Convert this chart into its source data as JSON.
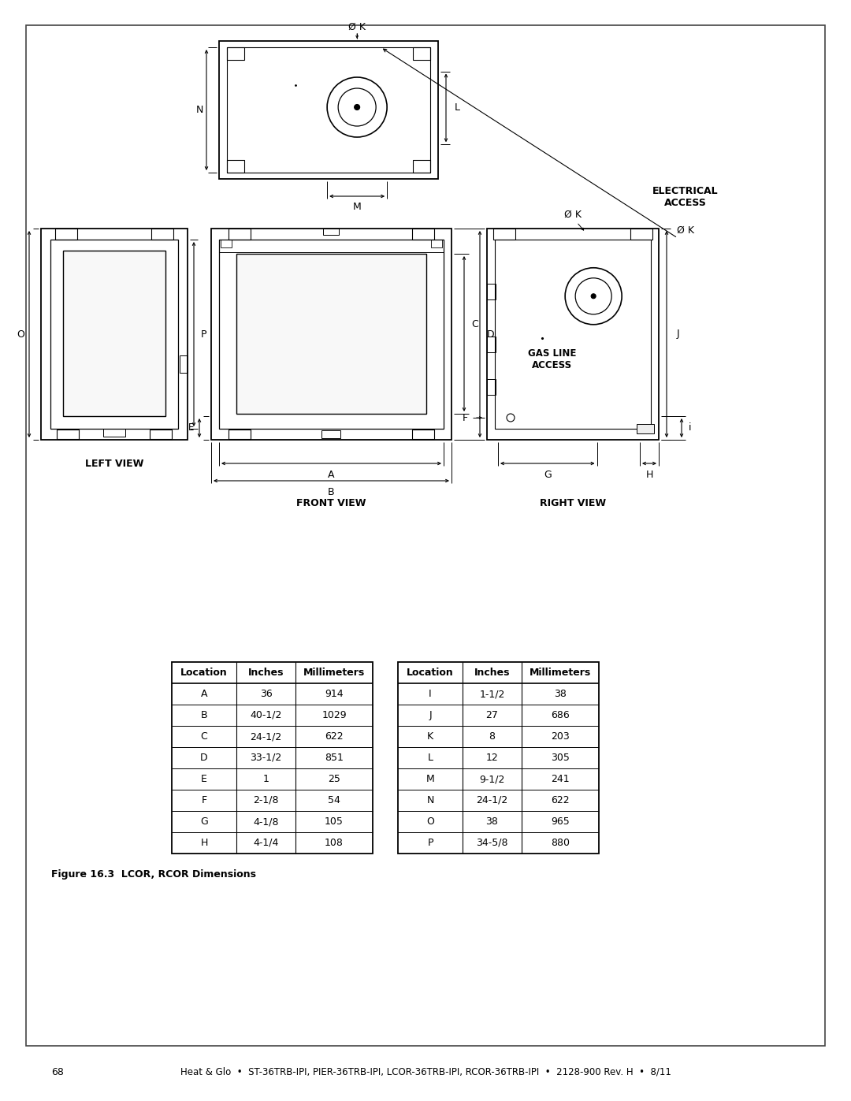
{
  "page_bg": "#ffffff",
  "line_color": "#000000",
  "text_color": "#000000",
  "table1": {
    "headers": [
      "Location",
      "Inches",
      "Millimeters"
    ],
    "rows": [
      [
        "A",
        "36",
        "914"
      ],
      [
        "B",
        "40-1/2",
        "1029"
      ],
      [
        "C",
        "24-1/2",
        "622"
      ],
      [
        "D",
        "33-1/2",
        "851"
      ],
      [
        "E",
        "1",
        "25"
      ],
      [
        "F",
        "2-1/8",
        "54"
      ],
      [
        "G",
        "4-1/8",
        "105"
      ],
      [
        "H",
        "4-1/4",
        "108"
      ]
    ]
  },
  "table2": {
    "headers": [
      "Location",
      "Inches",
      "Millimeters"
    ],
    "rows": [
      [
        "I",
        "1-1/2",
        "38"
      ],
      [
        "J",
        "27",
        "686"
      ],
      [
        "K",
        "8",
        "203"
      ],
      [
        "L",
        "12",
        "305"
      ],
      [
        "M",
        "9-1/2",
        "241"
      ],
      [
        "N",
        "24-1/2",
        "622"
      ],
      [
        "O",
        "38",
        "965"
      ],
      [
        "P",
        "34-5/8",
        "880"
      ]
    ]
  },
  "footer_text": "68",
  "footer_center": "Heat & Glo  •  ST-36TRB-IPI, PIER-36TRB-IPI, LCOR-36TRB-IPI, RCOR-36TRB-IPI  •  2128-900 Rev. H  •  8/11",
  "figure_caption": "Figure 16.3  LCOR, RCOR Dimensions",
  "left_view_label": "LEFT VIEW",
  "front_view_label": "FRONT VIEW",
  "right_view_label": "RIGHT VIEW",
  "electrical_access": "ELECTRICAL\nACCESS",
  "gas_line_access": "GAS LINE\nACCESS"
}
